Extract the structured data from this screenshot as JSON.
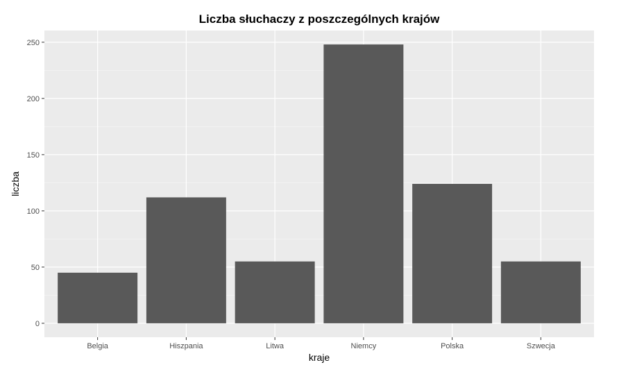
{
  "chart_data": {
    "type": "bar",
    "title": "Liczba słuchaczy z poszczególnych krajów",
    "xlabel": "kraje",
    "ylabel": "liczba",
    "categories": [
      "Belgia",
      "Hiszpania",
      "Litwa",
      "Niemcy",
      "Polska",
      "Szwecja"
    ],
    "values": [
      45,
      112,
      55,
      248,
      124,
      55
    ],
    "ylim": [
      -12.4,
      260.4
    ],
    "yticks": [
      0,
      50,
      100,
      150,
      200,
      250
    ],
    "grid": true,
    "legend": "none",
    "colors": {
      "bar": "#595959",
      "panel": "#ebebeb",
      "grid_major": "#ffffff",
      "tick_text": "#4d4d4d"
    }
  }
}
